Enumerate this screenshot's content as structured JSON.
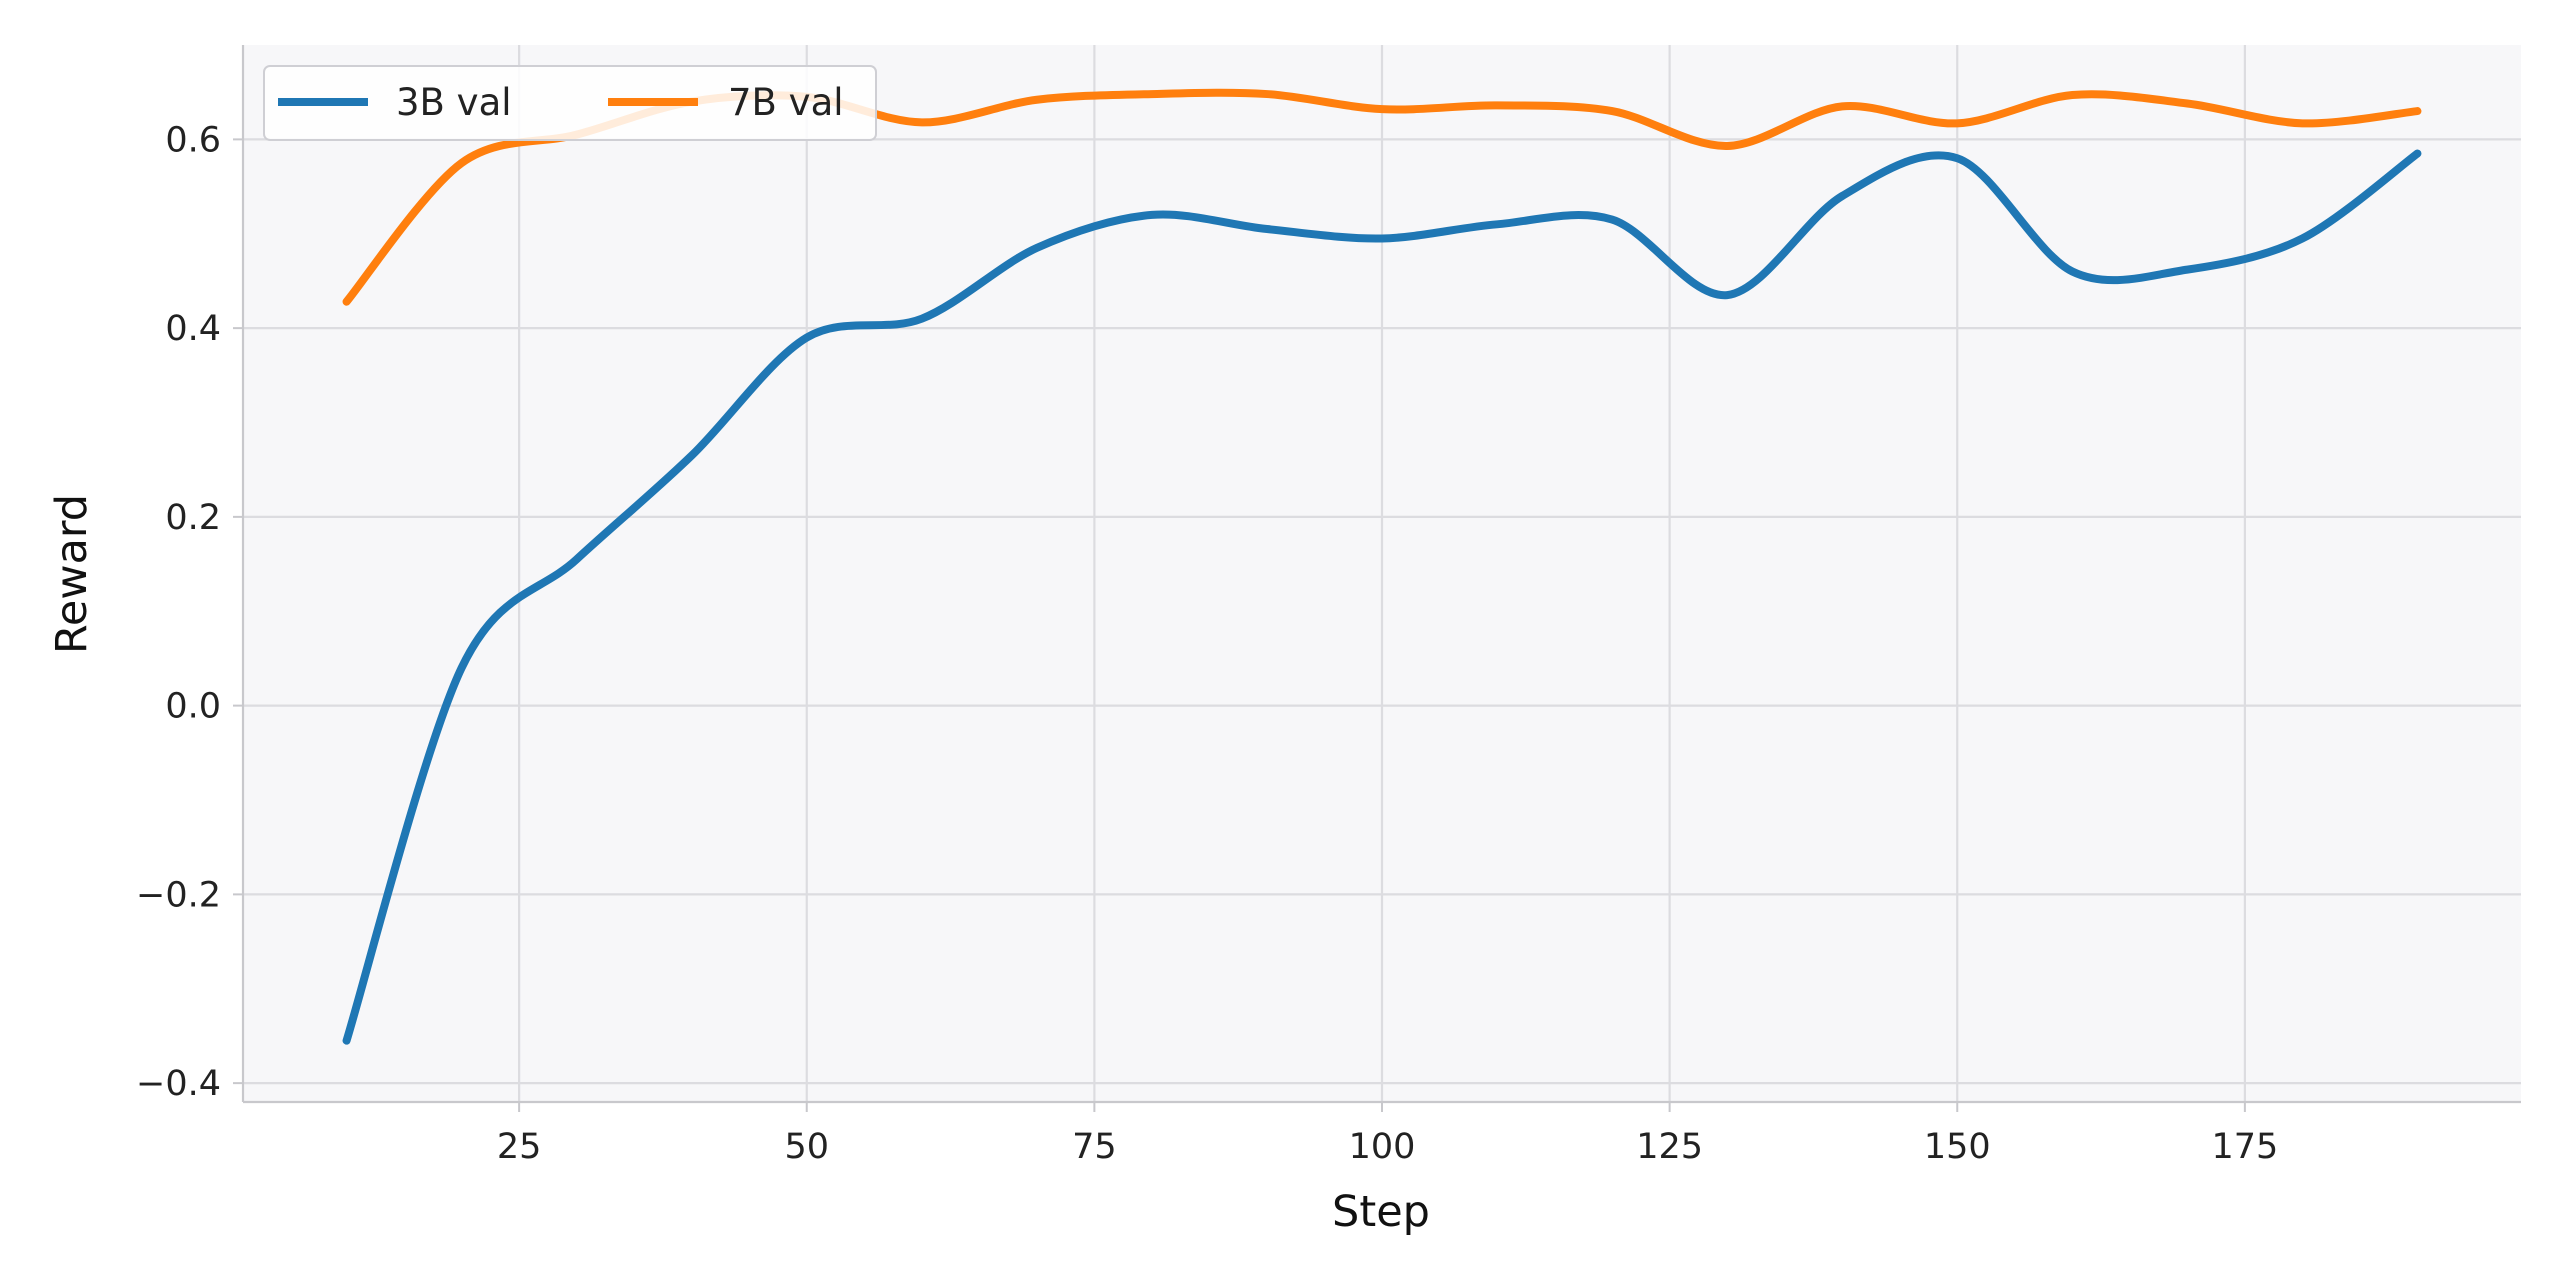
{
  "chart_data": {
    "type": "line",
    "title": "",
    "xlabel": "Step",
    "ylabel": "Reward",
    "xlim": [
      1,
      199
    ],
    "ylim": [
      -0.42,
      0.7
    ],
    "xticks": [
      25,
      50,
      75,
      100,
      125,
      150,
      175
    ],
    "yticks": [
      -0.4,
      -0.2,
      0.0,
      0.2,
      0.4,
      0.6
    ],
    "grid": true,
    "legend": {
      "placement": "top-left",
      "columns": 2
    },
    "series": [
      {
        "name": "3B val",
        "color": "#1f77b4",
        "x": [
          10,
          20,
          30,
          40,
          50,
          60,
          70,
          80,
          90,
          100,
          110,
          120,
          130,
          140,
          150,
          160,
          170,
          180,
          190
        ],
        "y": [
          -0.355,
          0.04,
          0.155,
          0.265,
          0.39,
          0.41,
          0.485,
          0.52,
          0.505,
          0.495,
          0.51,
          0.515,
          0.435,
          0.54,
          0.58,
          0.46,
          0.462,
          0.495,
          0.585
        ]
      },
      {
        "name": "7B val",
        "color": "#ff7f0e",
        "x": [
          10,
          20,
          30,
          40,
          50,
          60,
          70,
          80,
          90,
          100,
          110,
          120,
          130,
          140,
          150,
          160,
          170,
          180,
          190
        ],
        "y": [
          0.428,
          0.575,
          0.605,
          0.64,
          0.645,
          0.618,
          0.642,
          0.648,
          0.648,
          0.632,
          0.636,
          0.63,
          0.593,
          0.635,
          0.617,
          0.647,
          0.638,
          0.617,
          0.63
        ]
      }
    ]
  }
}
